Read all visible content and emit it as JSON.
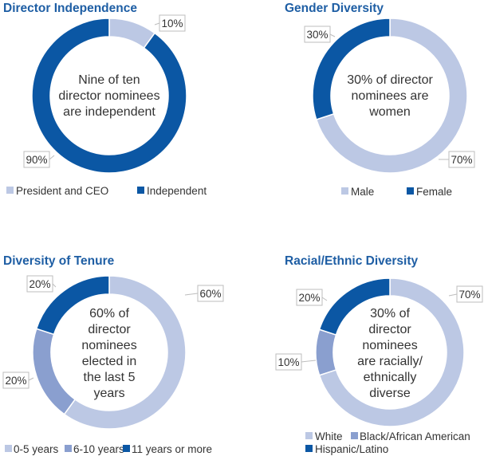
{
  "chart_data": [
    {
      "type": "pie",
      "title": "Director Independence",
      "center_text": [
        "Nine of ten",
        "director nominees",
        "are independent"
      ],
      "slices": [
        {
          "name": "President and CEO",
          "value": 10,
          "label": "10%",
          "color": "#bcc8e4"
        },
        {
          "name": "Independent",
          "value": 90,
          "label": "90%",
          "color": "#0b57a4"
        }
      ],
      "legend": [
        {
          "text": "President and CEO",
          "color": "#bcc8e4"
        },
        {
          "text": "Independent",
          "color": "#0b57a4"
        }
      ]
    },
    {
      "type": "pie",
      "title": "Gender Diversity",
      "center_text": [
        "30% of director",
        "nominees are",
        "women"
      ],
      "slices": [
        {
          "name": "Male",
          "value": 70,
          "label": "70%",
          "color": "#bcc8e4"
        },
        {
          "name": "Female",
          "value": 30,
          "label": "30%",
          "color": "#0b57a4"
        }
      ],
      "legend": [
        {
          "text": "Male",
          "color": "#bcc8e4"
        },
        {
          "text": "Female",
          "color": "#0b57a4"
        }
      ]
    },
    {
      "type": "pie",
      "title": "Diversity of Tenure",
      "center_text": [
        "60% of",
        "director",
        "nominees",
        "elected in",
        "the last 5",
        "years"
      ],
      "slices": [
        {
          "name": "0-5 years",
          "value": 60,
          "label": "60%",
          "color": "#bcc8e4"
        },
        {
          "name": "6-10 years",
          "value": 20,
          "label": "20%",
          "color": "#8a9fcf"
        },
        {
          "name": "11 years or more",
          "value": 20,
          "label": "20%",
          "color": "#0b57a4"
        }
      ],
      "legend": [
        {
          "text": "0-5 years",
          "color": "#bcc8e4"
        },
        {
          "text": "6-10 years",
          "color": "#8a9fcf"
        },
        {
          "text": "11 years or more",
          "color": "#0b57a4"
        }
      ]
    },
    {
      "type": "pie",
      "title": "Racial/Ethnic Diversity",
      "center_text": [
        "30% of",
        "director",
        "nominees",
        "are racially/",
        "ethnically",
        "diverse"
      ],
      "slices": [
        {
          "name": "White",
          "value": 70,
          "label": "70%",
          "color": "#bcc8e4"
        },
        {
          "name": "Black/African American",
          "value": 10,
          "label": "10%",
          "color": "#8a9fcf"
        },
        {
          "name": "Hispanic/Latino",
          "value": 20,
          "label": "20%",
          "color": "#0b57a4"
        }
      ],
      "legend": [
        {
          "text": "White",
          "color": "#bcc8e4"
        },
        {
          "text": "Black/African American",
          "color": "#8a9fcf"
        },
        {
          "text": "Hispanic/Latino",
          "color": "#0b57a4"
        }
      ]
    }
  ]
}
